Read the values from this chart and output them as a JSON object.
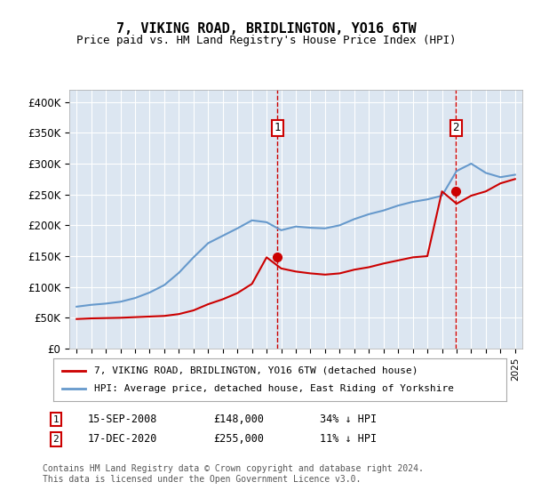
{
  "title": "7, VIKING ROAD, BRIDLINGTON, YO16 6TW",
  "subtitle": "Price paid vs. HM Land Registry's House Price Index (HPI)",
  "background_color": "#ffffff",
  "plot_bg_color": "#dce6f1",
  "grid_color": "#ffffff",
  "ylabel_color": "#000000",
  "ylim": [
    0,
    420000
  ],
  "yticks": [
    0,
    50000,
    100000,
    150000,
    200000,
    250000,
    300000,
    350000,
    400000
  ],
  "ytick_labels": [
    "£0",
    "£50K",
    "£100K",
    "£150K",
    "£200K",
    "£250K",
    "£300K",
    "£350K",
    "£400K"
  ],
  "legend_house": "7, VIKING ROAD, BRIDLINGTON, YO16 6TW (detached house)",
  "legend_hpi": "HPI: Average price, detached house, East Riding of Yorkshire",
  "footer": "Contains HM Land Registry data © Crown copyright and database right 2024.\nThis data is licensed under the Open Government Licence v3.0.",
  "sale1_date": "15-SEP-2008",
  "sale1_price": "£148,000",
  "sale1_note": "34% ↓ HPI",
  "sale2_date": "17-DEC-2020",
  "sale2_price": "£255,000",
  "sale2_note": "11% ↓ HPI",
  "house_color": "#cc0000",
  "hpi_color": "#6699cc",
  "sale_marker_color": "#cc0000",
  "vline_color": "#cc0000",
  "hpi_years": [
    1995,
    1996,
    1997,
    1998,
    1999,
    2000,
    2001,
    2002,
    2003,
    2004,
    2005,
    2006,
    2007,
    2008,
    2009,
    2010,
    2011,
    2012,
    2013,
    2014,
    2015,
    2016,
    2017,
    2018,
    2019,
    2020,
    2021,
    2022,
    2023,
    2024,
    2025
  ],
  "hpi_values": [
    68000,
    71000,
    73000,
    76000,
    82000,
    91000,
    103000,
    123000,
    148000,
    171000,
    183000,
    195000,
    208000,
    205000,
    192000,
    198000,
    196000,
    195000,
    200000,
    210000,
    218000,
    224000,
    232000,
    238000,
    242000,
    248000,
    288000,
    300000,
    285000,
    278000,
    282000
  ],
  "house_years": [
    1995,
    1996,
    1997,
    1998,
    1999,
    2000,
    2001,
    2002,
    2003,
    2004,
    2005,
    2006,
    2007,
    2008,
    2009,
    2010,
    2011,
    2012,
    2013,
    2014,
    2015,
    2016,
    2017,
    2018,
    2019,
    2020,
    2021,
    2022,
    2023,
    2024,
    2025
  ],
  "house_values": [
    48000,
    49000,
    49500,
    50000,
    51000,
    52000,
    53000,
    56000,
    62000,
    72000,
    80000,
    90000,
    105000,
    148000,
    130000,
    125000,
    122000,
    120000,
    122000,
    128000,
    132000,
    138000,
    143000,
    148000,
    150000,
    255000,
    235000,
    248000,
    255000,
    268000,
    275000
  ],
  "sale1_year": 2008.75,
  "sale2_year": 2020.96
}
